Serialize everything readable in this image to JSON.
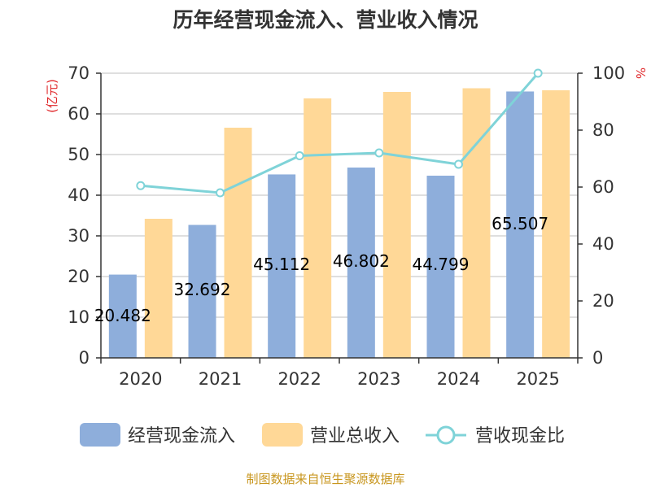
{
  "chart_data": {
    "type": "bar",
    "title": "历年经营现金流入、营业收入情况",
    "categories": [
      "2020",
      "2021",
      "2022",
      "2023",
      "2024",
      "2025"
    ],
    "series": [
      {
        "name": "经营现金流入",
        "kind": "bar",
        "axis": "left",
        "values": [
          20.482,
          32.692,
          45.112,
          46.802,
          44.799,
          65.507
        ],
        "labels": [
          "20.482",
          "32.692",
          "45.112",
          "46.802",
          "44.799",
          "65.507"
        ],
        "color": "#8eaedb"
      },
      {
        "name": "营业总收入",
        "kind": "bar",
        "axis": "left",
        "values": [
          34.2,
          56.6,
          63.8,
          65.4,
          66.3,
          65.8
        ],
        "color": "#ffd897"
      },
      {
        "name": "营收现金比",
        "kind": "line",
        "axis": "right",
        "values": [
          60.5,
          58.0,
          71.0,
          72.0,
          68.0,
          100.0
        ],
        "color": "#7fd3d8"
      }
    ],
    "y_left": {
      "label": "(亿元)",
      "ylim": [
        0,
        70
      ],
      "ticks": [
        0,
        10,
        20,
        30,
        40,
        50,
        60,
        70
      ]
    },
    "y_right": {
      "label": "%",
      "ylim": [
        0,
        100
      ],
      "ticks": [
        0,
        20,
        40,
        60,
        80,
        100
      ]
    },
    "grid": true,
    "legend_position": "bottom"
  },
  "colors": {
    "axis_label": "#e0272a",
    "source": "#c8961e",
    "grid": "#cccccc",
    "axis": "#333333"
  },
  "source_text": "制图数据来自恒生聚源数据库"
}
